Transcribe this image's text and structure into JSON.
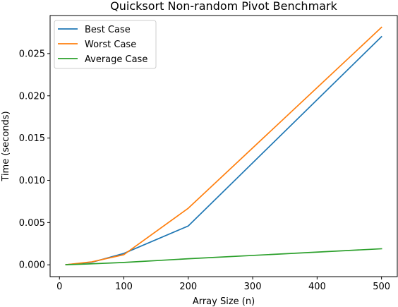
{
  "chart_data": {
    "type": "line",
    "title": "Quicksort Non-random Pivot Benchmark",
    "xlabel": "Array Size (n)",
    "ylabel": "Time (seconds)",
    "x": [
      10,
      50,
      100,
      200,
      500
    ],
    "xlim": [
      -14.5,
      524.5
    ],
    "ylim": [
      -0.0014,
      0.0295
    ],
    "xticks": [
      0,
      100,
      200,
      300,
      400,
      500
    ],
    "xtick_labels": [
      "0",
      "100",
      "200",
      "300",
      "400",
      "500"
    ],
    "yticks": [
      0.0,
      0.005,
      0.01,
      0.015,
      0.02,
      0.025
    ],
    "ytick_labels": [
      "0.000",
      "0.005",
      "0.010",
      "0.015",
      "0.020",
      "0.025"
    ],
    "grid": false,
    "legend_position": "top-left",
    "series": [
      {
        "name": "Best Case",
        "color": "#1f77b4",
        "values": [
          1e-05,
          0.0003,
          0.00135,
          0.0046,
          0.027
        ]
      },
      {
        "name": "Worst Case",
        "color": "#ff7f0e",
        "values": [
          1e-05,
          0.00035,
          0.0012,
          0.0067,
          0.0281
        ]
      },
      {
        "name": "Average Case",
        "color": "#2ca02c",
        "values": [
          1e-05,
          0.00012,
          0.00028,
          0.00072,
          0.0019
        ]
      }
    ]
  }
}
